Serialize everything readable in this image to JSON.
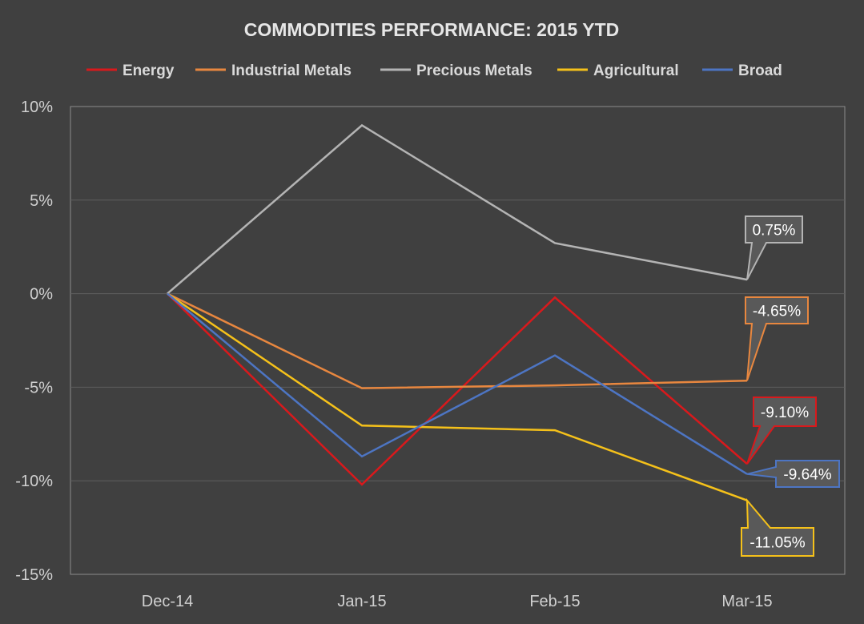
{
  "chart_data": {
    "type": "line",
    "title": "COMMODITIES PERFORMANCE:  2015 YTD",
    "categories": [
      "Dec-14",
      "Jan-15",
      "Feb-15",
      "Mar-15"
    ],
    "ylim": [
      -15,
      10
    ],
    "yticks": [
      10,
      5,
      0,
      -5,
      -10,
      -15
    ],
    "ytick_labels": [
      "10%",
      "5%",
      "0%",
      "-5%",
      "-10%",
      "-15%"
    ],
    "grid": true,
    "legend_position": "top",
    "series": [
      {
        "name": "Energy",
        "color": "#d9191c",
        "values": [
          0,
          -10.2,
          -0.2,
          -9.1
        ],
        "label": "-9.10%"
      },
      {
        "name": "Industrial Metals",
        "color": "#e8873f",
        "values": [
          0,
          -5.05,
          -4.9,
          -4.65
        ],
        "label": "-4.65%"
      },
      {
        "name": "Precious Metals",
        "color": "#b4b4b4",
        "values": [
          0,
          9.0,
          2.7,
          0.75
        ],
        "label": "0.75%"
      },
      {
        "name": "Agricultural",
        "color": "#f5c11a",
        "values": [
          0,
          -7.05,
          -7.3,
          -11.05
        ],
        "label": "-11.05%"
      },
      {
        "name": "Broad",
        "color": "#4d75c3",
        "values": [
          0,
          -8.7,
          -3.3,
          -9.64
        ],
        "label": "-9.64%"
      }
    ]
  }
}
